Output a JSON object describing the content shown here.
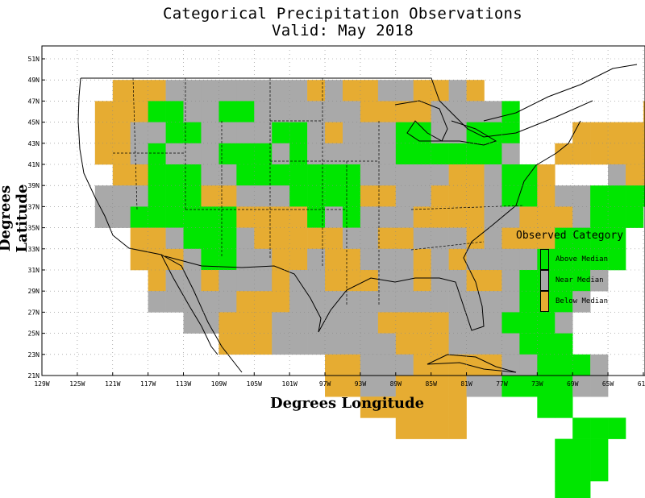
{
  "title": "Categorical Precipitation Observations",
  "subtitle": "Valid: May 2018",
  "xlabel": "Degrees Longitude",
  "ylabel": "Degrees Latitude",
  "x_ticks": [
    "129W",
    "125W",
    "121W",
    "117W",
    "113W",
    "109W",
    "105W",
    "101W",
    "97W",
    "93W",
    "89W",
    "85W",
    "81W",
    "77W",
    "73W",
    "69W",
    "65W",
    "61W"
  ],
  "y_ticks": [
    "21N",
    "23N",
    "25N",
    "27N",
    "29N",
    "31N",
    "33N",
    "35N",
    "37N",
    "39N",
    "41N",
    "43N",
    "45N",
    "47N",
    "49N",
    "51N"
  ],
  "legend": {
    "title": "Observed Category",
    "items": [
      {
        "label": "Above Median",
        "color": "#00e600"
      },
      {
        "label": "Near Median",
        "color": "#a9a9a9"
      },
      {
        "label": "Below Median",
        "color": "#e6ac32"
      }
    ]
  },
  "colors": {
    "A": "#00e600",
    "N": "#a9a9a9",
    "B": "#e6ac32"
  },
  "grid": {
    "lon_start": 125,
    "lat_top": 49,
    "cell_deg": 2,
    "rows": [
      "..BBBNNNNNNNNBNBBNNBBNB.............",
      ".BBBAANNAANNNNNNBBBBNNNNA.......BB..",
      ".BBNNAANNNNAANBNNNAANNAAA...BBBBBB..",
      ".BBNANNNAAANANNNNNAAAAAAN..BBBBBBB..",
      "..BBAAANNAAAAAAANNNNNBBNAAB...NBBBN.",
      ".NNNAAABBNNNAAAABBNNBBBNAABNNAAAAA..",
      ".NNAAAAAABBBBANANNNBBBBNNBBBNAAA....",
      "...BBNAAANBBBBBNNBBNNNBNBBBAAAA.....",
      "...BBBNAANNBBNBBNNNBNBNNNNAAAAA.....",
      "....BNNBNNNBNNBBBNNBNNBBNAAAAN......",
      "....NNNNNBBBNNNNNNNNNNNNNAAAN.......",
      "......NNBBBNNNNNNBBBBNNNAAAN........",
      "........BBBNNNNNNNBBBNNNNAAA........",
      "..............BBNNNBBBBBNNAAAN......",
      "..............BBNNBBBBNNAAAANN......",
      "................BBBBBB....AA........",
      "..................BBBB......AAA.....",
      "...........................AAA......",
      "...........................AAA......",
      "...........................AA......."
    ]
  }
}
